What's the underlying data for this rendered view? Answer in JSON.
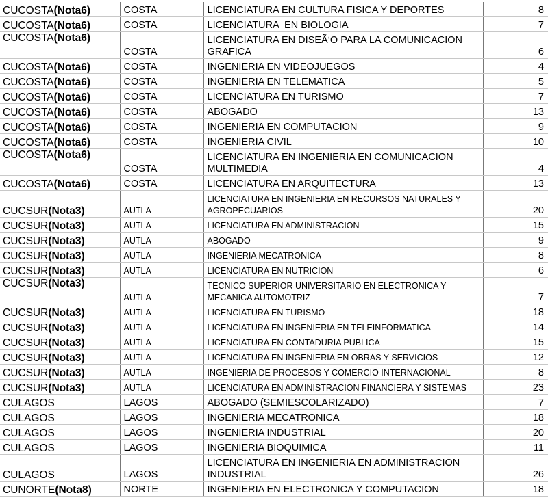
{
  "table": {
    "rows": [
      {
        "center": "CUCOSTA",
        "note": "(Nota6)",
        "campus": "COSTA",
        "program": "LICENCIATURA EN CULTURA FISICA Y DEPORTES",
        "count": 8
      },
      {
        "center": "CUCOSTA",
        "note": "(Nota6)",
        "campus": "COSTA",
        "program": "LICENCIATURA  EN BIOLOGIA",
        "count": 7
      },
      {
        "center": "CUCOSTA",
        "note": "(Nota6)",
        "campus": "COSTA",
        "program": "LICENCIATURA EN DISEÃ‘O PARA LA COMUNICACION GRAFICA",
        "count": 6
      },
      {
        "center": "CUCOSTA",
        "note": "(Nota6)",
        "campus": "COSTA",
        "program": "INGENIERIA EN VIDEOJUEGOS",
        "count": 4
      },
      {
        "center": "CUCOSTA",
        "note": "(Nota6)",
        "campus": "COSTA",
        "program": "INGENIERIA EN TELEMATICA",
        "count": 5
      },
      {
        "center": "CUCOSTA",
        "note": "(Nota6)",
        "campus": "COSTA",
        "program": "LICENCIATURA EN TURISMO",
        "count": 7
      },
      {
        "center": "CUCOSTA",
        "note": "(Nota6)",
        "campus": "COSTA",
        "program": "ABOGADO",
        "count": 13
      },
      {
        "center": "CUCOSTA",
        "note": "(Nota6)",
        "campus": "COSTA",
        "program": "INGENIERIA EN COMPUTACION",
        "count": 9
      },
      {
        "center": "CUCOSTA",
        "note": "(Nota6)",
        "campus": "COSTA",
        "program": "INGENIERIA CIVIL",
        "count": 10
      },
      {
        "center": "CUCOSTA",
        "note": "(Nota6)",
        "campus": "COSTA",
        "program": "LICENCIATURA EN INGENIERIA EN COMUNICACION MULTIMEDIA",
        "count": 4
      },
      {
        "center": "CUCOSTA",
        "note": "(Nota6)",
        "campus": "COSTA",
        "program": "LICENCIATURA EN ARQUITECTURA",
        "count": 13
      },
      {
        "center": "CUCSUR",
        "note": "(Nota3)",
        "campus": "AUTLA",
        "program": "LICENCIATURA EN INGENIERIA EN RECURSOS NATURALES Y AGROPECUARIOS",
        "count": 20
      },
      {
        "center": "CUCSUR",
        "note": "(Nota3)",
        "campus": "AUTLA",
        "program": "LICENCIATURA EN ADMINISTRACION",
        "count": 15
      },
      {
        "center": "CUCSUR",
        "note": "(Nota3)",
        "campus": "AUTLA",
        "program": "ABOGADO",
        "count": 9
      },
      {
        "center": "CUCSUR",
        "note": "(Nota3)",
        "campus": "AUTLA",
        "program": "INGENIERIA MECATRONICA",
        "count": 8
      },
      {
        "center": "CUCSUR",
        "note": "(Nota3)",
        "campus": "AUTLA",
        "program": "LICENCIATURA EN NUTRICION",
        "count": 6
      },
      {
        "center": "CUCSUR",
        "note": "(Nota3)",
        "campus": "AUTLA",
        "program": "TECNICO SUPERIOR UNIVERSITARIO EN ELECTRONICA Y MECANICA AUTOMOTRIZ",
        "count": 7
      },
      {
        "center": "CUCSUR",
        "note": "(Nota3)",
        "campus": "AUTLA",
        "program": "LICENCIATURA EN TURISMO",
        "count": 18
      },
      {
        "center": "CUCSUR",
        "note": "(Nota3)",
        "campus": "AUTLA",
        "program": "LICENCIATURA EN INGENIERIA EN TELEINFORMATICA",
        "count": 14
      },
      {
        "center": "CUCSUR",
        "note": "(Nota3)",
        "campus": "AUTLA",
        "program": "LICENCIATURA EN CONTADURIA PUBLICA",
        "count": 15
      },
      {
        "center": "CUCSUR",
        "note": "(Nota3)",
        "campus": "AUTLA",
        "program": "LICENCIATURA EN INGENIERIA EN OBRAS Y SERVICIOS",
        "count": 12
      },
      {
        "center": "CUCSUR",
        "note": "(Nota3)",
        "campus": "AUTLA",
        "program": "INGENIERIA DE PROCESOS Y COMERCIO INTERNACIONAL",
        "count": 8
      },
      {
        "center": "CUCSUR",
        "note": "(Nota3)",
        "campus": "AUTLA",
        "program": "LICENCIATURA EN ADMINISTRACION FINANCIERA Y SISTEMAS",
        "count": 23
      },
      {
        "center": "CULAGOS",
        "campus": "LAGOS",
        "program": "ABOGADO (SEMIESCOLARIZADO)",
        "count": 7
      },
      {
        "center": "CULAGOS",
        "campus": "LAGOS",
        "program": "INGENIERIA MECATRONICA",
        "count": 18
      },
      {
        "center": "CULAGOS",
        "campus": "LAGOS",
        "program": "INGENIERIA INDUSTRIAL",
        "count": 20
      },
      {
        "center": "CULAGOS",
        "campus": "LAGOS",
        "program": "INGENIERIA BIOQUIMICA",
        "count": 11
      },
      {
        "center": "CULAGOS",
        "campus": "LAGOS",
        "program": "LICENCIATURA EN INGENIERIA EN ADMINISTRACION INDUSTRIAL",
        "count": 26
      },
      {
        "center": "CUNORTE",
        "note": "(Nota8)",
        "campus": "NORTE",
        "program": "INGENIERIA EN ELECTRONICA Y COMPUTACION",
        "count": 18
      }
    ]
  }
}
